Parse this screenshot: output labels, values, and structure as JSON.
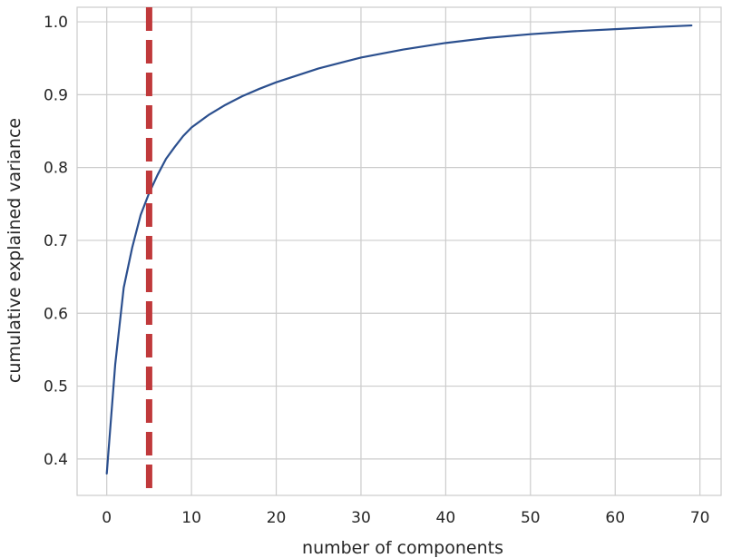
{
  "chart_data": {
    "type": "line",
    "title": "",
    "xlabel": "number of components",
    "ylabel": "cumulative explained variance",
    "xlim": [
      -3.5,
      72.5
    ],
    "ylim": [
      0.35,
      1.02
    ],
    "xticks": [
      0,
      10,
      20,
      30,
      40,
      50,
      60,
      70
    ],
    "yticks": [
      0.4,
      0.5,
      0.6,
      0.7,
      0.8,
      0.9,
      1.0
    ],
    "ytick_labels": [
      "0.4",
      "0.5",
      "0.6",
      "0.7",
      "0.8",
      "0.9",
      "1.0"
    ],
    "grid": true,
    "series": [
      {
        "color": "#2b4f8e",
        "x": [
          0,
          1,
          2,
          3,
          4,
          5,
          6,
          7,
          8,
          9,
          10,
          12,
          14,
          16,
          18,
          20,
          25,
          30,
          35,
          40,
          45,
          50,
          55,
          60,
          65,
          69
        ],
        "y": [
          0.38,
          0.53,
          0.635,
          0.69,
          0.735,
          0.765,
          0.79,
          0.812,
          0.828,
          0.843,
          0.855,
          0.872,
          0.886,
          0.898,
          0.908,
          0.917,
          0.936,
          0.951,
          0.962,
          0.971,
          0.978,
          0.983,
          0.987,
          0.99,
          0.993,
          0.995
        ]
      }
    ],
    "vline": {
      "x": 5,
      "color": "#c0393b",
      "style": "dashed"
    }
  }
}
